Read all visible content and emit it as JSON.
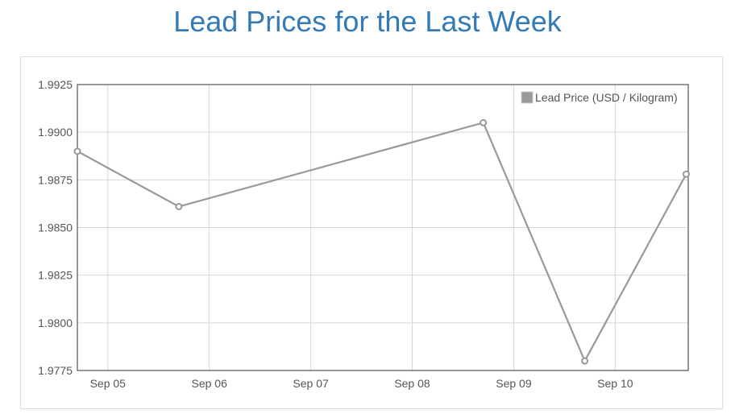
{
  "page": {
    "title": "Lead Prices for the Last Week"
  },
  "colors": {
    "title": "#337ab7",
    "series": "#999999",
    "grid": "#d8d8d8",
    "axis": "#545454"
  },
  "chart_data": {
    "type": "line",
    "title": "",
    "xlabel": "",
    "ylabel": "",
    "x_tick_labels": [
      "Sep 05",
      "Sep 06",
      "Sep 07",
      "Sep 08",
      "Sep 09",
      "Sep 10"
    ],
    "x_ticks_day": [
      5,
      6,
      7,
      8,
      9,
      10
    ],
    "xlim_day": [
      4.7,
      10.72
    ],
    "ylim": [
      1.9775,
      1.9925
    ],
    "y_ticks": [
      "1.9925",
      "1.9900",
      "1.9875",
      "1.9850",
      "1.9825",
      "1.9800",
      "1.9775"
    ],
    "grid": true,
    "legend_position": "top-right",
    "series": [
      {
        "name": "Lead Price (USD / Kilogram)",
        "color": "#999999",
        "points": [
          {
            "day": 4.7,
            "y": 1.989
          },
          {
            "day": 5.7,
            "y": 1.9861
          },
          {
            "day": 8.7,
            "y": 1.9905
          },
          {
            "day": 9.7,
            "y": 1.978
          },
          {
            "day": 10.7,
            "y": 1.9878
          }
        ]
      }
    ]
  }
}
